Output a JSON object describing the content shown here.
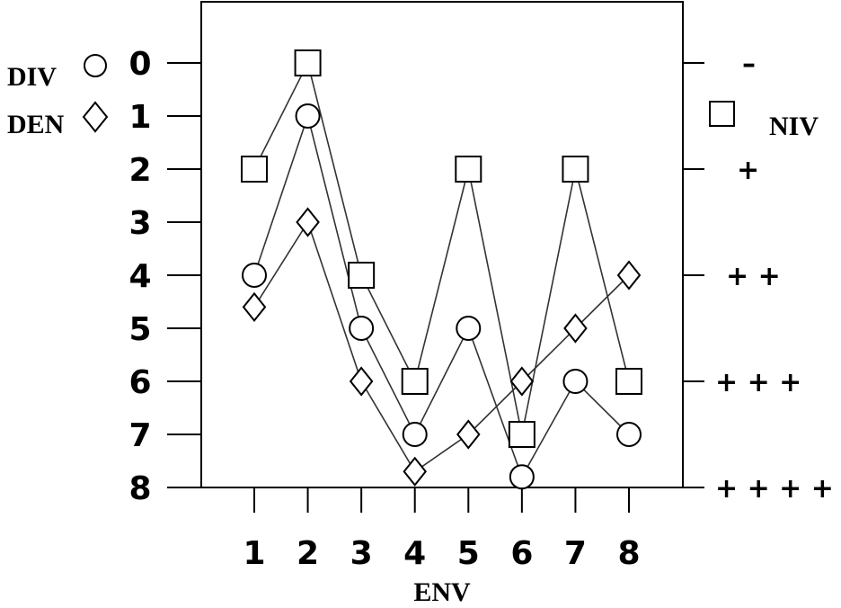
{
  "chart_data": {
    "type": "line",
    "title": "",
    "xlabel": "ENV",
    "ylabel": "",
    "x": [
      1,
      2,
      3,
      4,
      5,
      6,
      7,
      8
    ],
    "x_tick_labels": [
      "1",
      "2",
      "3",
      "4",
      "5",
      "6",
      "7",
      "8"
    ],
    "ylim": [
      0,
      8
    ],
    "y_inverted": true,
    "y_tick_labels": [
      "0",
      "1",
      "2",
      "3",
      "4",
      "5",
      "6",
      "7",
      "8"
    ],
    "right_axis": {
      "labels": [
        "–",
        "+",
        "+ +",
        "+ + +",
        "+ + + +"
      ],
      "values": [
        0,
        2,
        4,
        6,
        8
      ]
    },
    "grid": false,
    "series": [
      {
        "name": "DIV",
        "marker": "circle",
        "values": [
          4,
          1,
          5,
          7,
          5,
          7.8,
          6,
          7
        ]
      },
      {
        "name": "DEN",
        "marker": "diamond",
        "values": [
          4.6,
          3,
          6,
          7.7,
          7,
          6,
          5,
          4
        ]
      },
      {
        "name": "NIV",
        "marker": "square",
        "values": [
          2,
          0,
          4,
          6,
          2,
          7,
          2,
          6
        ]
      }
    ],
    "colors": {
      "line": "#333333",
      "marker_stroke": "#000000",
      "marker_fill": "#ffffff"
    }
  }
}
